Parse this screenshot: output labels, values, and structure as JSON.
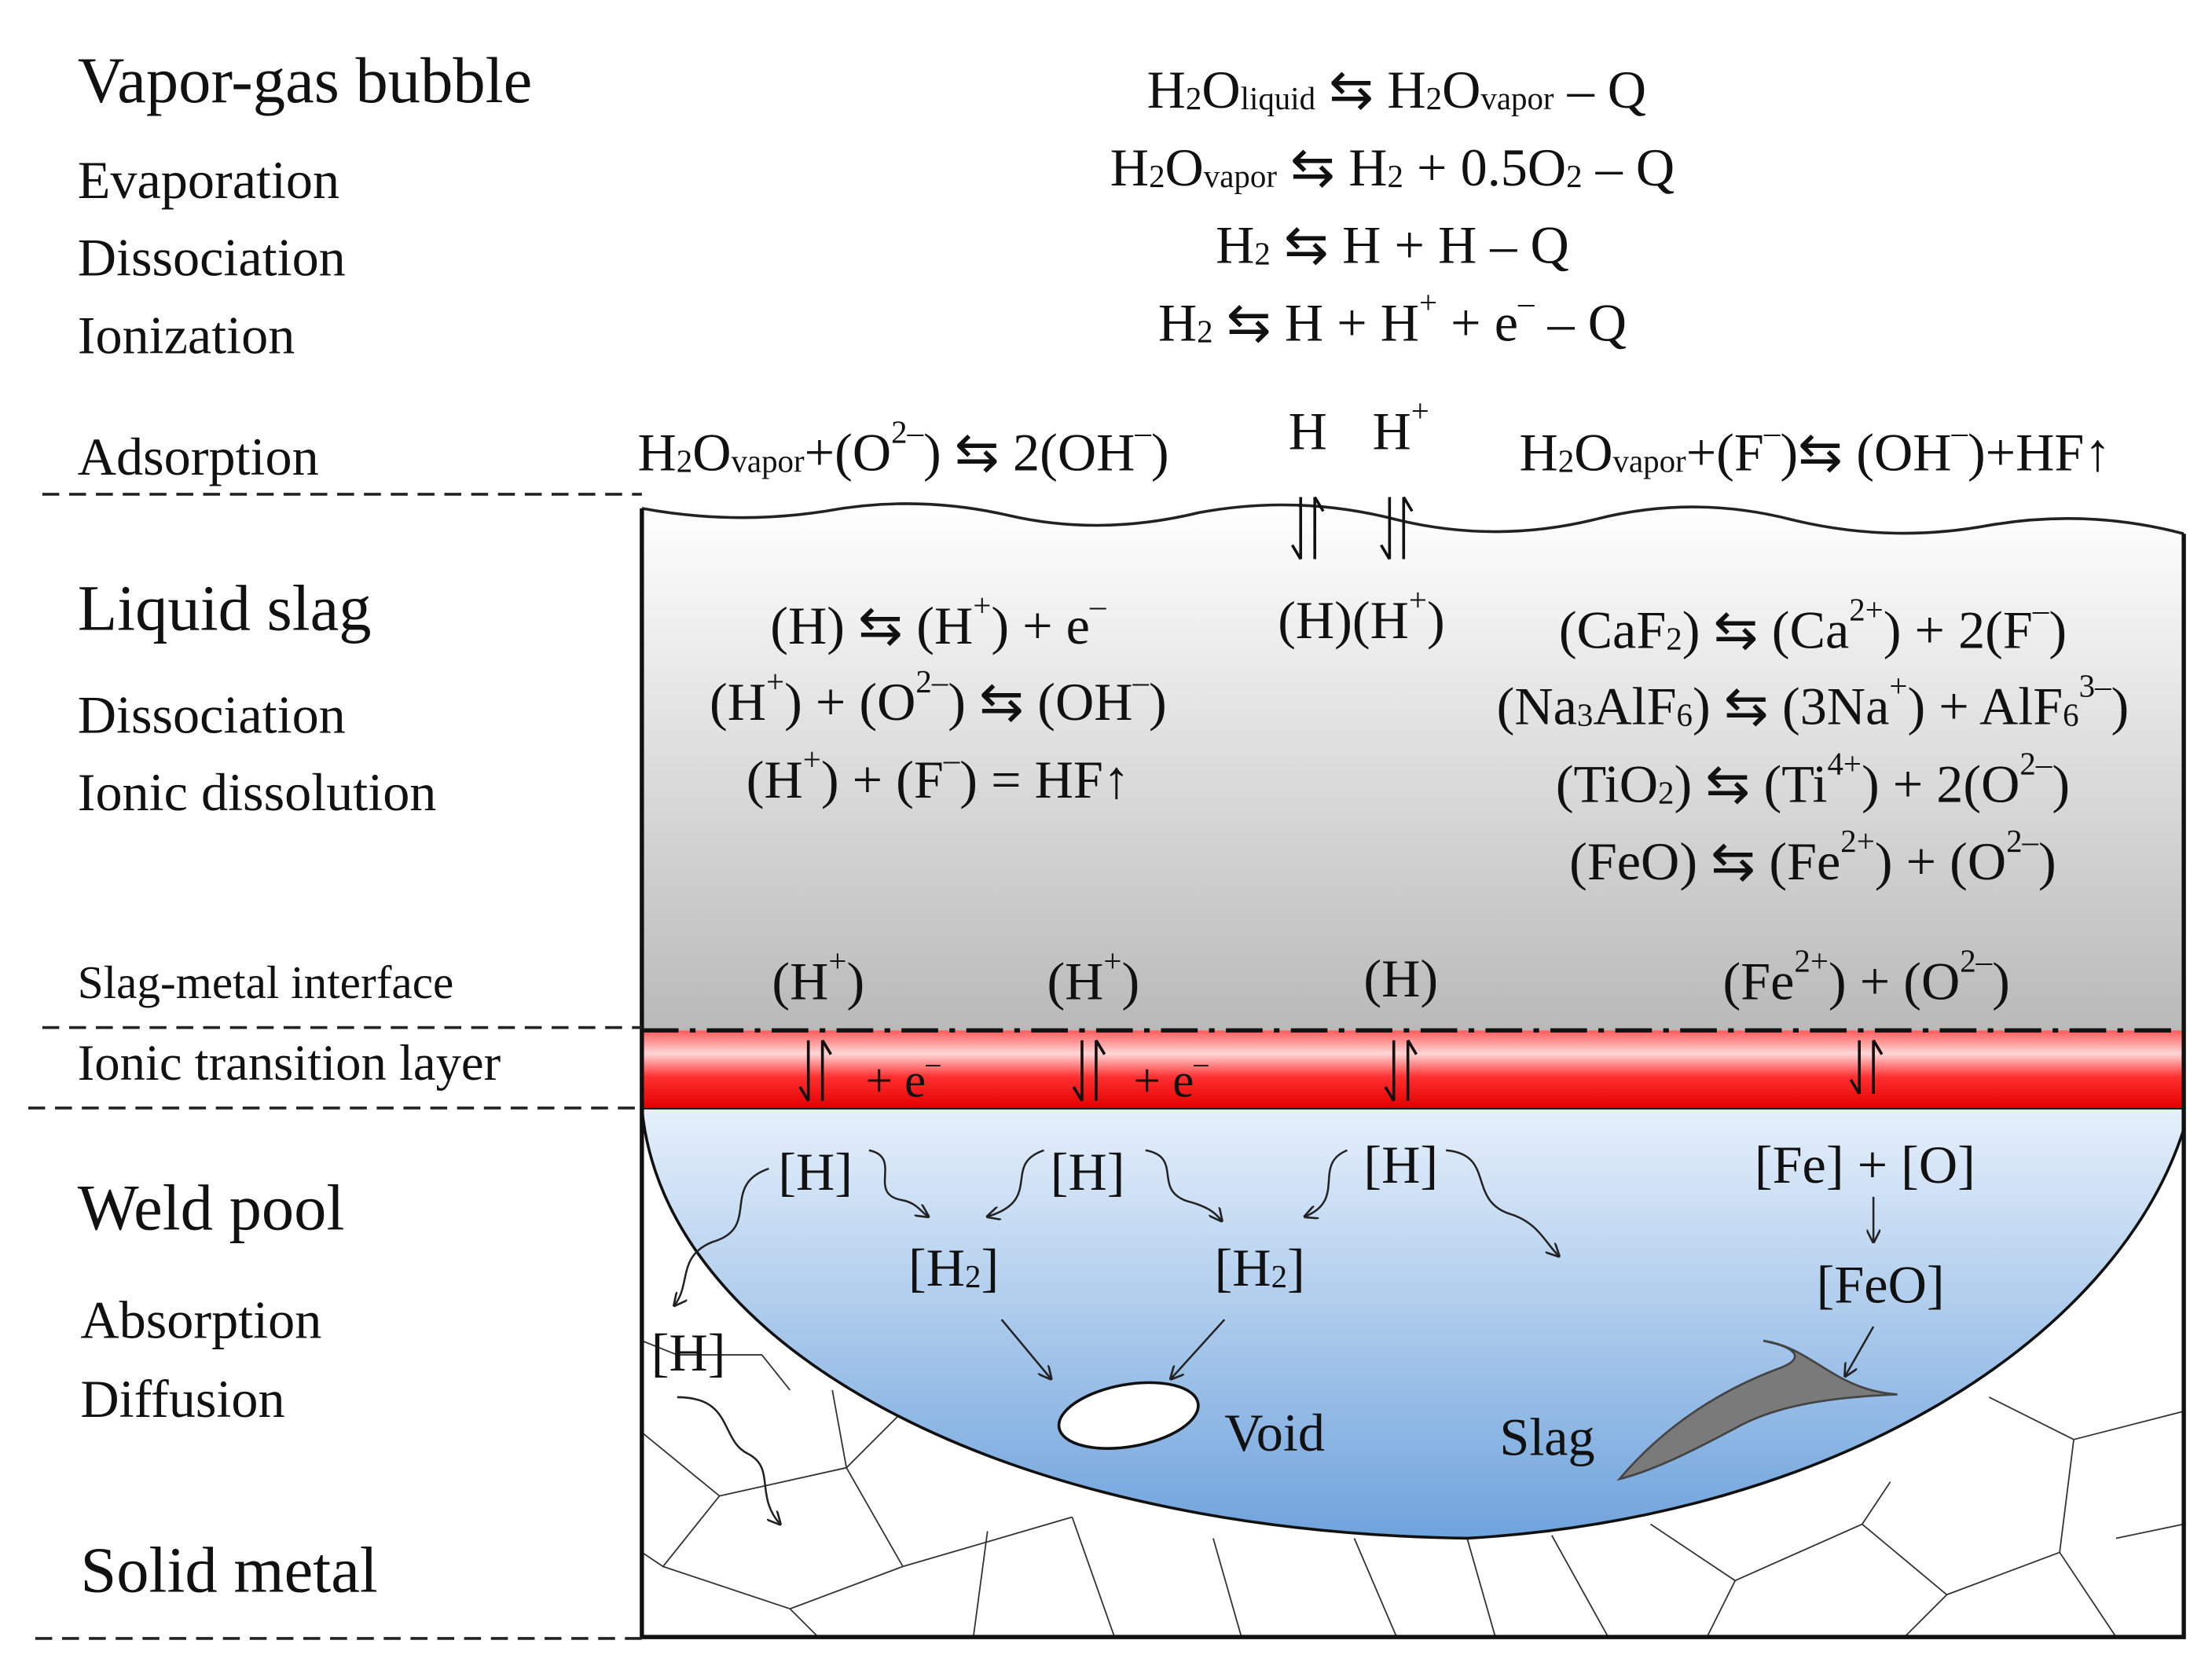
{
  "stage_labels": [
    "Vapor-gas bubble",
    "Evaporation",
    "Dissociation",
    "Ionization",
    "Adsorption",
    "Liquid slag",
    "Dissociation",
    "Ionic dissolution",
    "Slag-metal interface",
    "Ionic transition layer",
    "Weld pool",
    "Absorption",
    "Diffusion",
    "Solid metal"
  ],
  "top_equations": [
    [
      "H",
      {
        "sub": "2"
      },
      "O",
      {
        "sub": "liquid"
      },
      " ⇆ H",
      {
        "sub": "2"
      },
      "O",
      {
        "sub": "vapor"
      },
      " – Q"
    ],
    [
      "H",
      {
        "sub": "2"
      },
      "O",
      {
        "sub": "vapor"
      },
      " ⇆ H",
      {
        "sub": "2"
      },
      " + 0.5O",
      {
        "sub": "2"
      },
      " – Q"
    ],
    [
      "H",
      {
        "sub": "2"
      },
      " ⇆ H + H – Q"
    ],
    [
      "H",
      {
        "sub": "2"
      },
      " ⇆ H + H",
      {
        "sup": "+"
      },
      " + e",
      {
        "sup": "–"
      },
      " – Q"
    ]
  ],
  "adsorption": {
    "left": [
      "H",
      {
        "sub": "2"
      },
      "O",
      {
        "sub": "vapor"
      },
      "+(O",
      {
        "sup": "2–"
      },
      ") ⇆ 2(OH",
      {
        "sup": "–"
      },
      ")"
    ],
    "h": [
      "H"
    ],
    "h_plus": [
      "H",
      {
        "sup": "+"
      }
    ],
    "right": [
      "H",
      {
        "sub": "2"
      },
      "O",
      {
        "sub": "vapor"
      },
      "+(F",
      {
        "sup": "–"
      },
      ")⇆ (OH",
      {
        "sup": "–"
      },
      ")+HF↑"
    ]
  },
  "slag": {
    "left_equations": [
      [
        "(H) ⇆ (H",
        {
          "sup": "+"
        },
        ") + e",
        {
          "sup": "–"
        }
      ],
      [
        "(H",
        {
          "sup": "+"
        },
        ") + (O",
        {
          "sup": "2–"
        },
        ") ⇆ (OH",
        {
          "sup": "–"
        },
        ")"
      ],
      [
        "(H",
        {
          "sup": "+"
        },
        ") + (F",
        {
          "sup": "–"
        },
        ") = HF↑"
      ]
    ],
    "species": [
      "(H)(H",
      {
        "sup": "+"
      },
      ")"
    ],
    "right_equations": [
      [
        "(CaF",
        {
          "sub": "2"
        },
        ") ⇆ (Ca",
        {
          "sup": "2+"
        },
        ") + 2(F",
        {
          "sup": "–"
        },
        ")"
      ],
      [
        "(Na",
        {
          "sub": "3"
        },
        "AlF",
        {
          "sub": "6"
        },
        ") ⇆ (3Na",
        {
          "sup": "+"
        },
        ") + AlF",
        {
          "sub": "6"
        },
        {
          "sup": "3–"
        },
        ")"
      ],
      [
        "(TiO",
        {
          "sub": "2"
        },
        ") ⇆ (Ti",
        {
          "sup": "4+"
        },
        ") + 2(O",
        {
          "sup": "2–"
        },
        ")"
      ],
      [
        "(FeO) ⇆ (Fe",
        {
          "sup": "2+"
        },
        ") + (O",
        {
          "sup": "2–"
        },
        ")"
      ]
    ]
  },
  "interface": {
    "species": [
      [
        "(H",
        {
          "sup": "+"
        },
        ")"
      ],
      [
        "(H",
        {
          "sup": "+"
        },
        ")"
      ],
      [
        "(H)"
      ],
      [
        "(Fe",
        {
          "sup": "2+"
        },
        ") + (O",
        {
          "sup": "2–"
        },
        ")"
      ]
    ]
  },
  "transition": {
    "electrons": [
      [
        "+ e",
        {
          "sup": "–"
        }
      ],
      [
        "+ e",
        {
          "sup": "–"
        }
      ]
    ]
  },
  "weld_pool": {
    "species": [
      [
        "[H]"
      ],
      [
        "[H]"
      ],
      [
        "[H]"
      ],
      [
        "[Fe] + [O]"
      ],
      [
        "[H",
        {
          "sub": "2"
        },
        "]"
      ],
      [
        "[H",
        {
          "sub": "2"
        },
        "]"
      ],
      [
        "[FeO]"
      ],
      [
        "[H]"
      ]
    ],
    "void": "Void",
    "slag": "Slag"
  }
}
